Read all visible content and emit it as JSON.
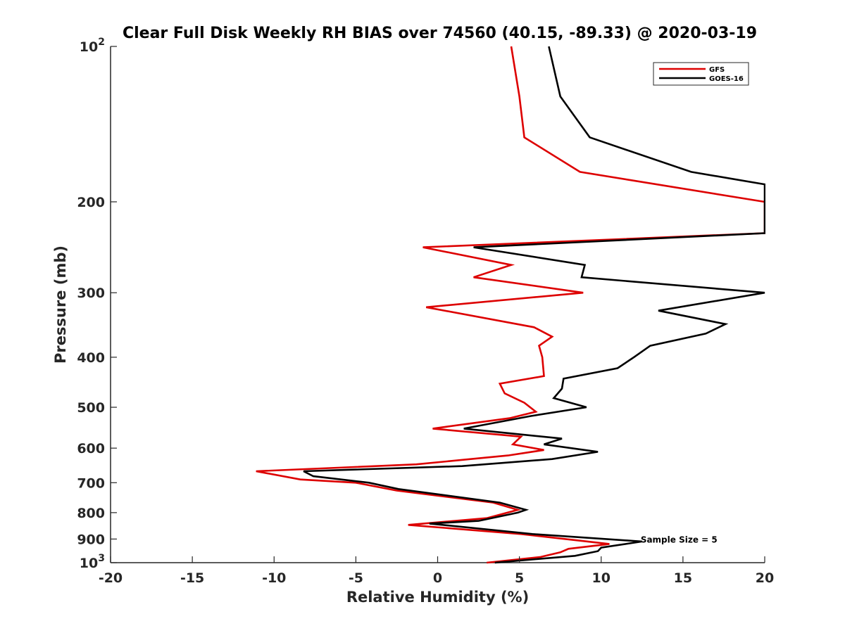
{
  "chart_data": {
    "type": "line",
    "title": "Clear Full Disk Weekly RH BIAS over 74560 (40.15, -89.33) @ 2020-03-19",
    "xlabel": "Relative Humidity (%)",
    "ylabel": "Pressure (mb)",
    "xlim": [
      -20,
      20
    ],
    "ylim": [
      100,
      1000
    ],
    "y_scale": "log",
    "y_reversed": true,
    "grid": false,
    "legend_position": "top-right",
    "x_ticks": [
      "-20",
      "-15",
      "-10",
      "-5",
      "0",
      "5",
      "10",
      "15",
      "20"
    ],
    "y_ticks": [
      {
        "value": 100,
        "base": "10",
        "exp": "2"
      },
      {
        "value": 200,
        "label": "200"
      },
      {
        "value": 300,
        "label": "300"
      },
      {
        "value": 400,
        "label": "400"
      },
      {
        "value": 500,
        "label": "500"
      },
      {
        "value": 600,
        "label": "600"
      },
      {
        "value": 700,
        "label": "700"
      },
      {
        "value": 800,
        "label": "800"
      },
      {
        "value": 900,
        "label": "900"
      },
      {
        "value": 1000,
        "base": "10",
        "exp": "3"
      }
    ],
    "series": [
      {
        "name": "GFS",
        "color": "#dd0000",
        "points": [
          [
            4.5,
            100
          ],
          [
            5.0,
            125
          ],
          [
            5.3,
            150
          ],
          [
            8.7,
            175
          ],
          [
            20.0,
            200
          ],
          [
            20.0,
            230
          ],
          [
            -0.9,
            245
          ],
          [
            4.5,
            265
          ],
          [
            2.2,
            280
          ],
          [
            8.9,
            300
          ],
          [
            -0.7,
            320
          ],
          [
            5.9,
            350
          ],
          [
            7.0,
            365
          ],
          [
            6.2,
            380
          ],
          [
            6.4,
            400
          ],
          [
            6.5,
            435
          ],
          [
            3.8,
            450
          ],
          [
            4.1,
            470
          ],
          [
            5.3,
            490
          ],
          [
            6.0,
            510
          ],
          [
            4.4,
            525
          ],
          [
            -0.3,
            550
          ],
          [
            5.1,
            570
          ],
          [
            4.6,
            590
          ],
          [
            6.5,
            605
          ],
          [
            4.3,
            620
          ],
          [
            -1.3,
            645
          ],
          [
            -11.1,
            665
          ],
          [
            -8.4,
            690
          ],
          [
            -5.0,
            700
          ],
          [
            -2.5,
            725
          ],
          [
            3.4,
            765
          ],
          [
            4.9,
            790
          ],
          [
            3.0,
            820
          ],
          [
            -1.8,
            845
          ],
          [
            5.1,
            880
          ],
          [
            10.5,
            920
          ],
          [
            8.0,
            940
          ],
          [
            7.5,
            955
          ],
          [
            6.3,
            975
          ],
          [
            3.0,
            1000
          ]
        ]
      },
      {
        "name": "GOES-16",
        "color": "#000000",
        "points": [
          [
            6.8,
            100
          ],
          [
            7.5,
            125
          ],
          [
            9.3,
            150
          ],
          [
            15.5,
            175
          ],
          [
            20.0,
            185
          ],
          [
            20.0,
            230
          ],
          [
            2.2,
            245
          ],
          [
            9.0,
            265
          ],
          [
            8.8,
            280
          ],
          [
            20.0,
            300
          ],
          [
            13.5,
            325
          ],
          [
            17.6,
            345
          ],
          [
            16.4,
            360
          ],
          [
            13.0,
            380
          ],
          [
            12.0,
            400
          ],
          [
            11.0,
            420
          ],
          [
            7.7,
            440
          ],
          [
            7.6,
            460
          ],
          [
            7.1,
            480
          ],
          [
            9.1,
            500
          ],
          [
            5.7,
            520
          ],
          [
            1.6,
            550
          ],
          [
            7.6,
            575
          ],
          [
            6.5,
            590
          ],
          [
            9.8,
            610
          ],
          [
            7.0,
            630
          ],
          [
            1.5,
            650
          ],
          [
            -8.2,
            665
          ],
          [
            -7.6,
            680
          ],
          [
            -4.2,
            700
          ],
          [
            -2.4,
            720
          ],
          [
            3.8,
            765
          ],
          [
            5.4,
            790
          ],
          [
            4.9,
            800
          ],
          [
            2.5,
            830
          ],
          [
            -0.5,
            840
          ],
          [
            5.8,
            880
          ],
          [
            12.5,
            910
          ],
          [
            10.0,
            935
          ],
          [
            9.8,
            950
          ],
          [
            8.4,
            970
          ],
          [
            3.5,
            1000
          ]
        ]
      }
    ],
    "annotations": [
      {
        "text": "Sample Size = 5",
        "x": 12.5,
        "y": 900
      }
    ]
  }
}
